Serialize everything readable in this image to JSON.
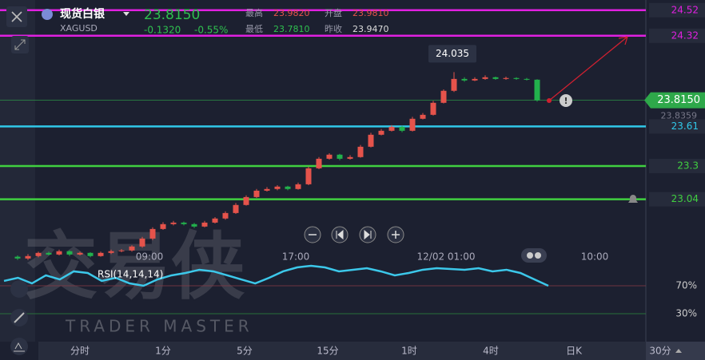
{
  "header": {
    "name": "现货白银",
    "symbol": "XAGUSD",
    "price": "23.8150",
    "change": "-0.1320",
    "change_pct": "-0.55%",
    "high_label": "最高",
    "high": "23.9820",
    "open_label": "开盘",
    "open": "23.9810",
    "low_label": "最低",
    "low": "23.7810",
    "prev_label": "昨收",
    "prev": "23.9470"
  },
  "chart_data": {
    "type": "candlestick",
    "ylim": [
      22.5,
      24.6
    ],
    "up_color": "#e5534b",
    "down_color": "#22b14c",
    "candles": [
      [
        22.59,
        22.6,
        22.565,
        22.576
      ],
      [
        22.576,
        22.61,
        22.565,
        22.595
      ],
      [
        22.595,
        22.63,
        22.585,
        22.62
      ],
      [
        22.62,
        22.63,
        22.6,
        22.607
      ],
      [
        22.607,
        22.645,
        22.6,
        22.633
      ],
      [
        22.633,
        22.64,
        22.595,
        22.607
      ],
      [
        22.607,
        22.63,
        22.6,
        22.62
      ],
      [
        22.62,
        22.625,
        22.585,
        22.595
      ],
      [
        22.595,
        22.63,
        22.59,
        22.62
      ],
      [
        22.62,
        22.645,
        22.61,
        22.633
      ],
      [
        22.633,
        22.65,
        22.625,
        22.639
      ],
      [
        22.639,
        22.68,
        22.63,
        22.67
      ],
      [
        22.67,
        22.745,
        22.66,
        22.732
      ],
      [
        22.732,
        22.82,
        22.72,
        22.807
      ],
      [
        22.807,
        22.86,
        22.8,
        22.845
      ],
      [
        22.845,
        22.87,
        22.835,
        22.857
      ],
      [
        22.857,
        22.865,
        22.835,
        22.845
      ],
      [
        22.845,
        22.855,
        22.815,
        22.826
      ],
      [
        22.826,
        22.87,
        22.82,
        22.857
      ],
      [
        22.857,
        22.9,
        22.85,
        22.889
      ],
      [
        22.889,
        22.945,
        22.88,
        22.932
      ],
      [
        22.932,
        23.01,
        22.925,
        22.995
      ],
      [
        22.995,
        23.07,
        22.99,
        23.057
      ],
      [
        23.057,
        23.12,
        23.05,
        23.107
      ],
      [
        23.107,
        23.135,
        23.1,
        23.12
      ],
      [
        23.12,
        23.15,
        23.11,
        23.139
      ],
      [
        23.139,
        23.145,
        23.11,
        23.12
      ],
      [
        23.12,
        23.17,
        23.115,
        23.157
      ],
      [
        23.157,
        23.295,
        23.15,
        23.282
      ],
      [
        23.282,
        23.37,
        23.275,
        23.357
      ],
      [
        23.357,
        23.4,
        23.35,
        23.389
      ],
      [
        23.389,
        23.395,
        23.345,
        23.357
      ],
      [
        23.357,
        23.385,
        23.35,
        23.37
      ],
      [
        23.37,
        23.465,
        23.365,
        23.451
      ],
      [
        23.451,
        23.56,
        23.445,
        23.545
      ],
      [
        23.545,
        23.59,
        23.54,
        23.576
      ],
      [
        23.576,
        23.62,
        23.57,
        23.607
      ],
      [
        23.607,
        23.615,
        23.565,
        23.576
      ],
      [
        23.576,
        23.685,
        23.57,
        23.67
      ],
      [
        23.67,
        23.715,
        23.665,
        23.701
      ],
      [
        23.701,
        23.81,
        23.695,
        23.795
      ],
      [
        23.795,
        23.9,
        23.79,
        23.889
      ],
      [
        23.889,
        24.035,
        23.88,
        23.982
      ],
      [
        23.982,
        23.995,
        23.96,
        23.97
      ],
      [
        23.97,
        23.995,
        23.965,
        23.982
      ],
      [
        23.982,
        24.01,
        23.975,
        23.995
      ],
      [
        23.995,
        24.0,
        23.975,
        23.982
      ],
      [
        23.982,
        24.0,
        23.975,
        23.989
      ],
      [
        23.989,
        23.995,
        23.975,
        23.982
      ],
      [
        23.982,
        23.99,
        23.97,
        23.976
      ],
      [
        23.976,
        23.98,
        23.805,
        23.815
      ]
    ],
    "max_label": "24.035",
    "levels": [
      {
        "value": 24.52,
        "color": "#e020e0"
      },
      {
        "value": 24.32,
        "color": "#e020e0"
      },
      {
        "value": 23.61,
        "color": "#30c8e8"
      },
      {
        "value": 23.3,
        "color": "#40d040"
      },
      {
        "value": 23.04,
        "color": "#40d040"
      }
    ],
    "last_price": {
      "value": 23.815,
      "label": "23.8150",
      "color": "#2ea84a"
    },
    "bid": "23.8359",
    "time_labels": [
      "09:00",
      "17:00",
      "12/02 01:00",
      "10:00"
    ],
    "rsi": {
      "label": "RSI(14,14,14)",
      "color": "#3cc8ea",
      "ylim": [
        0,
        100
      ],
      "yticks": [
        {
          "value": 70,
          "label": "70%"
        },
        {
          "value": 30,
          "label": "30%"
        }
      ],
      "values": [
        76.9,
        81.4,
        73.4,
        84.9,
        79.1,
        90.6,
        88.3,
        76.9,
        81.4,
        73.4,
        70,
        79.1,
        84.9,
        88.3,
        92.9,
        90.6,
        84.9,
        79.1,
        73.4,
        81.4,
        90.6,
        96.3,
        98.6,
        96.3,
        90.6,
        92.9,
        95.1,
        90.6,
        84.9,
        88.3,
        92.9,
        95.1,
        94,
        92.9,
        95.1,
        90.6,
        92.9,
        88.3,
        79.1,
        70
      ]
    }
  },
  "watermark": {
    "logo": "交易侠",
    "brand": "TRADER MASTER"
  },
  "tabs": [
    "分时",
    "1分",
    "5分",
    "15分",
    "1时",
    "4时",
    "日K",
    "30分"
  ]
}
